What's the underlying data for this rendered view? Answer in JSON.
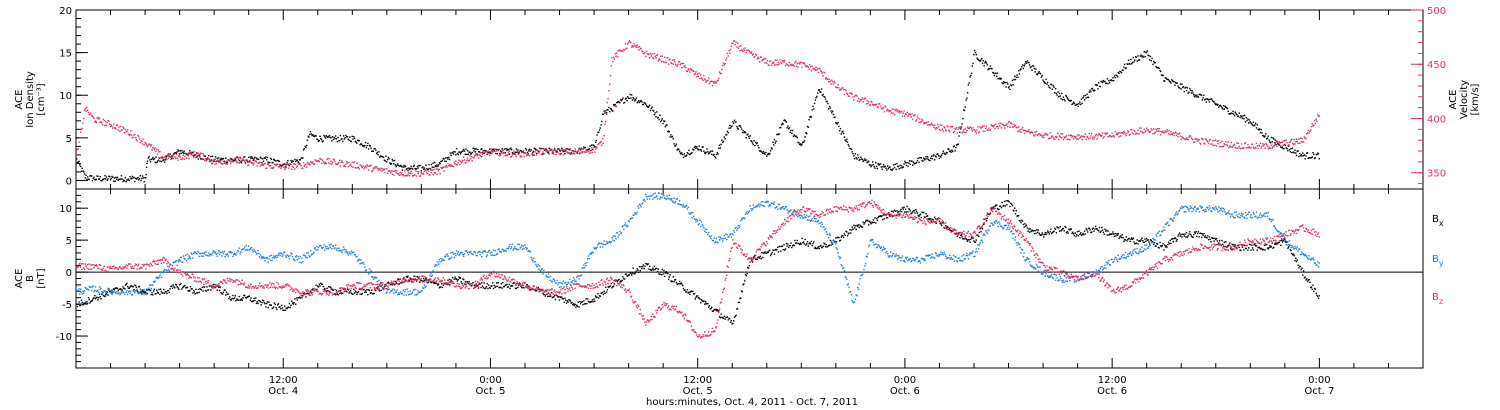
{
  "figure": {
    "xlabel": "hours:minutes, Oct.  4, 2011 - Oct.  7, 2011",
    "x_ticks": [
      {
        "x": 12,
        "line1": "12:00",
        "line2": "Oct. 4"
      },
      {
        "x": 24,
        "line1": "0:00",
        "line2": "Oct. 5"
      },
      {
        "x": 36,
        "line1": "12:00",
        "line2": "Oct. 5"
      },
      {
        "x": 48,
        "line1": "0:00",
        "line2": "Oct. 6"
      },
      {
        "x": 60,
        "line1": "12:00",
        "line2": "Oct. 6"
      },
      {
        "x": 72,
        "line1": "0:00",
        "line2": "Oct. 7"
      }
    ],
    "colors": {
      "black": "#000000",
      "pink": "#e0305e",
      "blue": "#1f7fd9",
      "axis": "#000000"
    }
  },
  "chart_data": [
    {
      "type": "scatter",
      "xlim": [
        0,
        78
      ],
      "ylabel_left": [
        "ACE",
        "Ion Density",
        "[cm⁻³]"
      ],
      "ylabel_right": [
        "ACE",
        "Velocity",
        "[km/s]"
      ],
      "ylim_left": [
        -1,
        20
      ],
      "ylim_right": [
        335,
        500
      ],
      "left_ticks": [
        0,
        5,
        10,
        15,
        20
      ],
      "right_ticks": [
        350,
        400,
        450,
        500
      ],
      "series": [
        {
          "axis": "left",
          "color": "#000000",
          "x": [
            0,
            0.5,
            1,
            2,
            3,
            4,
            4.1,
            5,
            6,
            7,
            8,
            9,
            10,
            11,
            12,
            13,
            13.5,
            14,
            15,
            16,
            17,
            18,
            19,
            20,
            21,
            22,
            23,
            24,
            25,
            26,
            27,
            28,
            29,
            30,
            30.5,
            31,
            32,
            33,
            34,
            35,
            36,
            37,
            38,
            39,
            40,
            41,
            42,
            43,
            44,
            45,
            46,
            47,
            48,
            49,
            50,
            51,
            52,
            53,
            54,
            55,
            56,
            57,
            58,
            59,
            60,
            61,
            62,
            63,
            64,
            65,
            66,
            67,
            68,
            69,
            70,
            71,
            72
          ],
          "y": [
            2.5,
            0.5,
            0.3,
            0.3,
            0.3,
            0.3,
            2.5,
            2.5,
            3.5,
            3,
            2.5,
            2.5,
            2.5,
            2.5,
            2,
            2.5,
            5.5,
            5,
            5,
            5,
            4,
            2.5,
            1.5,
            1.5,
            2,
            3.5,
            3.5,
            3.5,
            3.5,
            3.5,
            3.5,
            3.5,
            3.5,
            4,
            8,
            8.5,
            10,
            9,
            7,
            3,
            4,
            3,
            7,
            5,
            3,
            7,
            4,
            11,
            7,
            3,
            2,
            1.5,
            2,
            2.5,
            3,
            4,
            15,
            13,
            11,
            14,
            12,
            10,
            9,
            11,
            12,
            14,
            15,
            12,
            11,
            10,
            9,
            8,
            7,
            5,
            4,
            3,
            3
          ]
        },
        {
          "axis": "right",
          "color": "#e0305e",
          "x": [
            0,
            0.5,
            1,
            2,
            3,
            4,
            5,
            6,
            7,
            8,
            9,
            10,
            11,
            12,
            13,
            14,
            15,
            16,
            17,
            18,
            19,
            20,
            21,
            22,
            23,
            24,
            25,
            26,
            27,
            28,
            29,
            30,
            30.5,
            31,
            32,
            33,
            34,
            35,
            36,
            37,
            38,
            39,
            40,
            41,
            42,
            43,
            44,
            45,
            46,
            47,
            48,
            49,
            50,
            51,
            52,
            53,
            54,
            55,
            56,
            57,
            58,
            59,
            60,
            61,
            62,
            63,
            64,
            65,
            66,
            67,
            68,
            69,
            70,
            71,
            72
          ],
          "y": [
            365,
            410,
            400,
            395,
            388,
            378,
            365,
            365,
            368,
            360,
            362,
            360,
            357,
            356,
            357,
            362,
            360,
            358,
            355,
            352,
            350,
            350,
            352,
            360,
            365,
            370,
            368,
            368,
            370,
            370,
            370,
            372,
            380,
            455,
            470,
            460,
            455,
            450,
            440,
            432,
            470,
            460,
            452,
            452,
            450,
            445,
            430,
            420,
            415,
            408,
            405,
            398,
            392,
            390,
            390,
            392,
            395,
            388,
            385,
            384,
            384,
            384,
            385,
            388,
            390,
            388,
            384,
            380,
            378,
            376,
            375,
            375,
            378,
            380,
            405
          ]
        }
      ]
    },
    {
      "type": "scatter",
      "xlim": [
        0,
        78
      ],
      "ylabel_left": [
        "ACE",
        "B",
        "[nT]"
      ],
      "ylim_left": [
        -15,
        13
      ],
      "left_ticks": [
        -10,
        -5,
        0,
        5,
        10
      ],
      "zero_line": true,
      "legend": {
        "placement": "right",
        "entries": [
          {
            "label": "B",
            "sub": "x",
            "color": "#000000"
          },
          {
            "label": "B",
            "sub": "y",
            "color": "#1f7fd9"
          },
          {
            "label": "B",
            "sub": "z",
            "color": "#e0305e"
          }
        ]
      },
      "series": [
        {
          "name": "Bx",
          "color": "#000000",
          "x": [
            0,
            1,
            2,
            3,
            4,
            5,
            6,
            7,
            8,
            9,
            10,
            11,
            12,
            13,
            14,
            15,
            16,
            17,
            18,
            19,
            20,
            21,
            22,
            23,
            24,
            25,
            26,
            27,
            28,
            29,
            30,
            31,
            32,
            33,
            34,
            35,
            36,
            37,
            38,
            39,
            40,
            41,
            42,
            43,
            44,
            45,
            46,
            47,
            48,
            49,
            50,
            51,
            52,
            53,
            54,
            55,
            56,
            57,
            58,
            59,
            60,
            61,
            62,
            63,
            64,
            65,
            66,
            67,
            68,
            69,
            70,
            71,
            72
          ],
          "y": [
            -5,
            -4,
            -3,
            -2,
            -3,
            -3,
            -2,
            -3,
            -2,
            -4,
            -4,
            -5,
            -5.5,
            -4,
            -2,
            -3,
            -3,
            -3,
            -2,
            -1,
            -1,
            -2,
            -1,
            -2,
            -2,
            -2,
            -2,
            -3,
            -4,
            -5,
            -4,
            -2,
            0,
            1,
            0,
            -2,
            -4,
            -6,
            -8,
            2,
            3,
            4,
            5,
            4,
            5,
            7,
            8,
            9,
            10,
            9,
            8,
            6,
            5,
            10,
            11,
            7,
            6,
            7,
            6,
            7,
            6,
            5,
            5,
            4,
            6,
            6,
            5,
            4,
            4,
            4,
            5,
            0,
            -4
          ]
        },
        {
          "name": "By",
          "color": "#1f7fd9",
          "x": [
            0,
            1,
            2,
            3,
            4,
            5,
            6,
            7,
            8,
            9,
            10,
            11,
            12,
            13,
            14,
            15,
            16,
            17,
            18,
            19,
            20,
            21,
            22,
            23,
            24,
            25,
            26,
            27,
            28,
            29,
            30,
            31,
            32,
            33,
            34,
            35,
            36,
            37,
            38,
            39,
            40,
            41,
            42,
            43,
            44,
            45,
            46,
            47,
            48,
            49,
            50,
            51,
            52,
            53,
            54,
            55,
            56,
            57,
            58,
            59,
            60,
            61,
            62,
            63,
            64,
            65,
            66,
            67,
            68,
            69,
            70,
            71,
            72
          ],
          "y": [
            -3,
            -2.5,
            -3,
            -3,
            -3,
            0,
            2,
            3,
            3,
            3,
            4,
            2,
            3,
            2,
            4,
            4,
            3,
            0,
            -3,
            -3,
            -3,
            2,
            3,
            3,
            3,
            4,
            4,
            0,
            -2,
            -1,
            4,
            5,
            8,
            12,
            12,
            11,
            8,
            5,
            6,
            10,
            11,
            10,
            9,
            8,
            4,
            -5,
            5,
            3,
            2,
            2,
            3,
            2,
            3,
            8,
            7,
            2,
            0,
            -1,
            -1,
            0,
            2,
            3,
            4,
            7,
            10,
            10,
            10,
            9,
            9,
            9,
            5,
            3,
            1
          ]
        },
        {
          "name": "Bz",
          "color": "#e0305e",
          "x": [
            0,
            1,
            2,
            3,
            4,
            5,
            6,
            7,
            8,
            9,
            10,
            11,
            12,
            13,
            14,
            15,
            16,
            17,
            18,
            19,
            20,
            21,
            22,
            23,
            24,
            25,
            26,
            27,
            28,
            29,
            30,
            31,
            32,
            33,
            34,
            35,
            36,
            37,
            38,
            39,
            40,
            41,
            42,
            43,
            44,
            45,
            46,
            47,
            48,
            49,
            50,
            51,
            52,
            53,
            54,
            55,
            56,
            57,
            58,
            59,
            60,
            61,
            62,
            63,
            64,
            65,
            66,
            67,
            68,
            69,
            70,
            71,
            72
          ],
          "y": [
            1,
            1,
            0.5,
            1,
            1,
            2,
            0,
            -1,
            -2,
            -1,
            -2,
            -2,
            -2,
            -3,
            -3,
            -3,
            -2,
            -2,
            -2,
            -1,
            -1,
            -1,
            -2,
            -2,
            0,
            -1,
            -2,
            -3,
            -3,
            -2,
            -2,
            -1,
            -3,
            -8,
            -5,
            -6,
            -10,
            -9,
            5,
            2,
            5,
            8,
            10,
            9,
            10,
            10,
            11,
            9,
            9,
            8,
            8,
            6,
            6,
            10,
            8,
            5,
            1,
            0,
            -1,
            0,
            -3,
            -2,
            0,
            2,
            3,
            4,
            4,
            4,
            5,
            5,
            6,
            7,
            6
          ]
        }
      ]
    }
  ]
}
